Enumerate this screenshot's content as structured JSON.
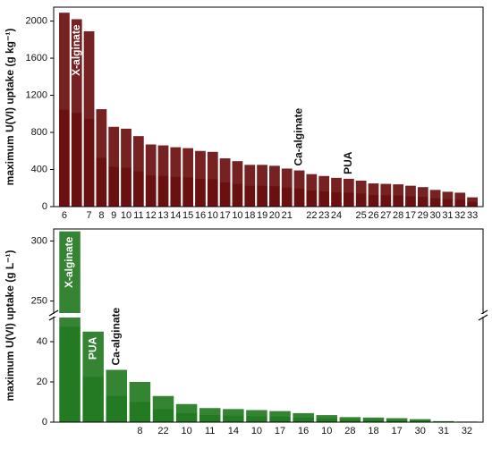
{
  "chart_data": [
    {
      "type": "bar",
      "ylabel": "maximum U(VI) uptake (g kg⁻¹)",
      "color": "#6b1010",
      "categories": [
        "6",
        null,
        "7",
        "8",
        "9",
        "10",
        "11",
        "12",
        "13",
        "14",
        "15",
        "16",
        "10",
        "17",
        "10",
        "18",
        "19",
        "20",
        "21",
        null,
        "22",
        "23",
        "24",
        null,
        "25",
        "26",
        "27",
        "28",
        "17",
        "29",
        "30",
        "31",
        "32",
        "33"
      ],
      "values": [
        2090,
        2020,
        1890,
        1050,
        860,
        840,
        760,
        670,
        660,
        640,
        630,
        600,
        590,
        520,
        490,
        450,
        450,
        440,
        410,
        390,
        350,
        330,
        310,
        300,
        280,
        250,
        245,
        240,
        225,
        210,
        180,
        160,
        150,
        100
      ],
      "annotations": [
        {
          "text": "X-alginate",
          "bar": 1,
          "position": "inside"
        },
        {
          "text": "Ca-alginate",
          "bar": 19,
          "position": "above"
        },
        {
          "text": "PUA",
          "bar": 23,
          "position": "above"
        }
      ],
      "ylim": [
        0,
        2150
      ],
      "yticks": [
        0,
        400,
        800,
        1200,
        1600,
        2000
      ]
    },
    {
      "type": "bar",
      "ylabel": "maximum U(VI) uptake (g L⁻¹)",
      "color": "#237a23",
      "categories": [
        null,
        null,
        null,
        "8",
        "22",
        "10",
        "11",
        "14",
        "10",
        "17",
        "16",
        "10",
        "28",
        "18",
        "17",
        "30",
        "31",
        "32"
      ],
      "values": [
        308,
        45,
        26,
        20,
        13,
        9,
        7,
        6.5,
        6,
        5.5,
        4.5,
        3.5,
        2.5,
        2.3,
        2,
        1.5,
        0.5,
        0.3
      ],
      "annotations": [
        {
          "text": "X-alginate",
          "bar": 0,
          "position": "inside"
        },
        {
          "text": "PUA",
          "bar": 1,
          "position": "inside"
        },
        {
          "text": "Ca-alginate",
          "bar": 2,
          "position": "above"
        }
      ],
      "ylim": [
        0,
        310
      ],
      "axis_break": [
        52,
        240
      ],
      "yticks": [
        0,
        20,
        40,
        250,
        300
      ]
    }
  ]
}
